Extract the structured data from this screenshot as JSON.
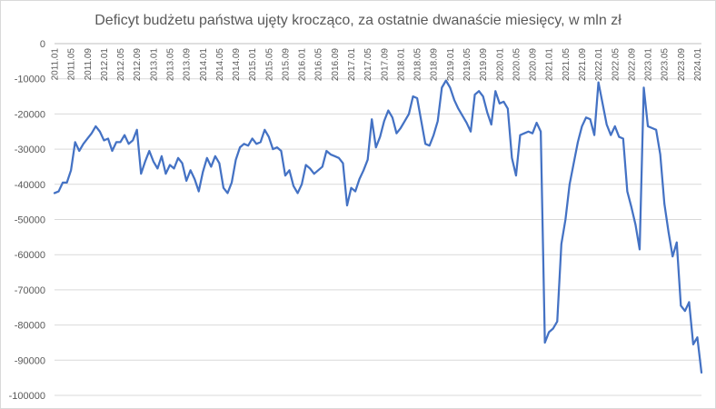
{
  "chart_data": {
    "type": "line",
    "title": "Deficyt budżetu państwa ujęty krocząco, za ostatnie dwanaście miesięcy, w mln zł",
    "xlabel": "",
    "ylabel": "",
    "ylim": [
      -100000,
      0
    ],
    "yticks": [
      0,
      -10000,
      -20000,
      -30000,
      -40000,
      -50000,
      -60000,
      -70000,
      -80000,
      -90000,
      -100000
    ],
    "x_start": "2011.01",
    "x_end": "2024.03",
    "xticks": [
      "2011.01",
      "2011.05",
      "2011.09",
      "2012.01",
      "2012.05",
      "2012.09",
      "2013.01",
      "2013.05",
      "2013.09",
      "2014.01",
      "2014.05",
      "2014.09",
      "2015.01",
      "2015.05",
      "2015.09",
      "2016.01",
      "2016.05",
      "2016.09",
      "2017.01",
      "2017.05",
      "2017.09",
      "2018.01",
      "2018.05",
      "2018.09",
      "2019.01",
      "2019.05",
      "2019.09",
      "2020.01",
      "2020.05",
      "2020.09",
      "2021.01",
      "2021.05",
      "2021.09",
      "2022.01",
      "2022.05",
      "2022.09",
      "2023.01",
      "2023.05",
      "2023.09",
      "2024.01"
    ],
    "grid": true,
    "legend": "none",
    "color": "#4472c4",
    "series": [
      {
        "values": [
          -42500,
          -42000,
          -39500,
          -39500,
          -36000,
          -28000,
          -30500,
          -28500,
          -27000,
          -25500,
          -23500,
          -25000,
          -27500,
          -27000,
          -30500,
          -28000,
          -28000,
          -26000,
          -28500,
          -27500,
          -24500,
          -37000,
          -33500,
          -30500,
          -33500,
          -35500,
          -32000,
          -37000,
          -34500,
          -35500,
          -32500,
          -34000,
          -39000,
          -36000,
          -38500,
          -42000,
          -36500,
          -32500,
          -35000,
          -32000,
          -34000,
          -41000,
          -42500,
          -39500,
          -33000,
          -29500,
          -28500,
          -29000,
          -27000,
          -28500,
          -28000,
          -24500,
          -26500,
          -30000,
          -29500,
          -30500,
          -37500,
          -36000,
          -40500,
          -42500,
          -40000,
          -34500,
          -35500,
          -37000,
          -36000,
          -35000,
          -30500,
          -31500,
          -32000,
          -32500,
          -34000,
          -46000,
          -41000,
          -42000,
          -38500,
          -36000,
          -33000,
          -21500,
          -29500,
          -26500,
          -22000,
          -19000,
          -21000,
          -25500,
          -24000,
          -22000,
          -20000,
          -15000,
          -15500,
          -22000,
          -28500,
          -29000,
          -26000,
          -22000,
          -12500,
          -10500,
          -12500,
          -16000,
          -18500,
          -20500,
          -22500,
          -25000,
          -14500,
          -13500,
          -15000,
          -19500,
          -23000,
          -13500,
          -17000,
          -16500,
          -18500,
          -32500,
          -37500,
          -26000,
          -25500,
          -25000,
          -25500,
          -22500,
          -25000,
          -85000,
          -82000,
          -81000,
          -79000,
          -57000,
          -50000,
          -40000,
          -34000,
          -28000,
          -23500,
          -21000,
          -21500,
          -26000,
          -11000,
          -17000,
          -23000,
          -26000,
          -23500,
          -26500,
          -27000,
          -42000,
          -46500,
          -51500,
          -58500,
          -12500,
          -23500,
          -24000,
          -24500,
          -31500,
          -45500,
          -53500,
          -60500,
          -56500,
          -74500,
          -76000,
          -73500,
          -85500,
          -83500,
          -93500
        ]
      }
    ]
  }
}
